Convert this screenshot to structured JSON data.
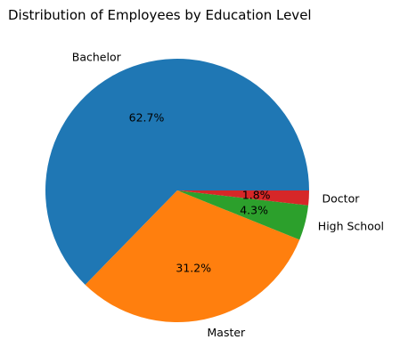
{
  "chart_data": {
    "type": "pie",
    "title": "Distribution of Employees by Education Level",
    "slices": [
      {
        "label": "Bachelor",
        "value": 62.7,
        "pct_label": "62.7%",
        "color": "#1f77b4"
      },
      {
        "label": "Master",
        "value": 31.2,
        "pct_label": "31.2%",
        "color": "#ff7f0e"
      },
      {
        "label": "High School",
        "value": 4.3,
        "pct_label": "4.3%",
        "color": "#2ca02c"
      },
      {
        "label": "Doctor",
        "value": 1.8,
        "pct_label": "1.8%",
        "color": "#d62728"
      }
    ],
    "start_angle_deg": 0,
    "direction": "counterclockwise"
  }
}
